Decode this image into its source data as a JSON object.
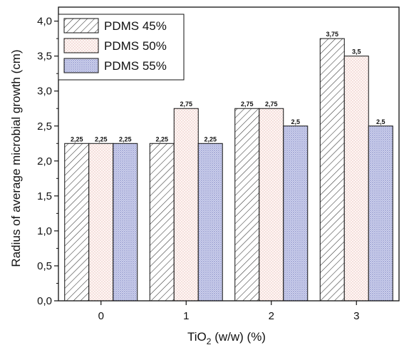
{
  "chart_data": {
    "type": "bar",
    "categories": [
      "0",
      "1",
      "2",
      "3"
    ],
    "series": [
      {
        "name": "PDMS 45%",
        "values": [
          2.25,
          2.25,
          2.75,
          3.75
        ],
        "labels": [
          "2,25",
          "2,25",
          "2,75",
          "3,75"
        ],
        "color": "#ffffff",
        "hatch": "#333333",
        "pattern": "diagonal-hatch"
      },
      {
        "name": "PDMS 50%",
        "values": [
          2.25,
          2.75,
          2.75,
          3.5
        ],
        "labels": [
          "2,25",
          "2,75",
          "2,75",
          "3,5"
        ],
        "color": "#fff6f4",
        "hatch": "#d9a9a3",
        "pattern": "dots"
      },
      {
        "name": "PDMS 55%",
        "values": [
          2.25,
          2.25,
          2.5,
          2.5
        ],
        "labels": [
          "2,25",
          "2,25",
          "2,5",
          "2,5"
        ],
        "color": "#d4d7f0",
        "hatch": "#6b72b8",
        "pattern": "fine-dots"
      }
    ],
    "xlabel_main": "TiO",
    "xlabel_sub": "2",
    "xlabel_rest": " (w/w) (%)",
    "ylabel": "Radius of average microbial growth (cm)",
    "ylim": [
      0,
      4.2
    ],
    "yticks": [
      0,
      0.5,
      1,
      1.5,
      2,
      2.5,
      3,
      3.5,
      4
    ],
    "ytick_labels": [
      "0,0",
      "0,5",
      "1,0",
      "1,5",
      "2,0",
      "2,5",
      "3,0",
      "3,5",
      "4,0"
    ],
    "grid": false,
    "legend_position": "top-left"
  }
}
